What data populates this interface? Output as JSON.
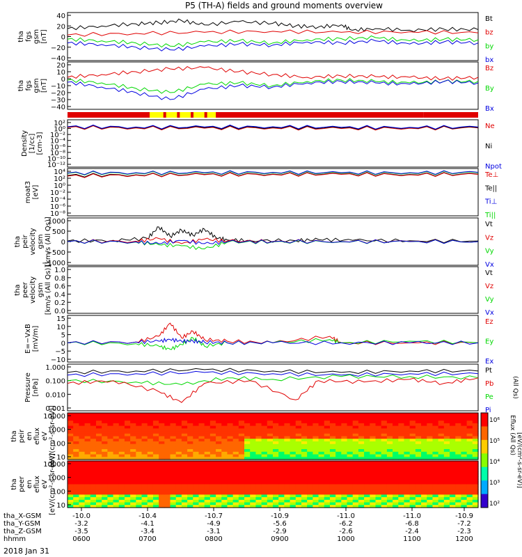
{
  "title": "P5 (TH-A) fields and ground moments overview",
  "date_label": "2018 Jan 31",
  "colors": {
    "black": "#000000",
    "red": "#e00000",
    "green": "#00d800",
    "blue": "#0000e0",
    "yellow": "#ffff00",
    "gray": "#888888"
  },
  "chart_data": [
    {
      "type": "line",
      "ylabel": [
        "tha",
        "fgs",
        "gsm",
        "[nT]"
      ],
      "yticks": [
        "40",
        "20",
        "0",
        "−20",
        "−40"
      ],
      "ylim": [
        -40,
        40
      ],
      "legend": [
        {
          "text": "Bt",
          "color": "#000000"
        },
        {
          "text": "bz",
          "color": "#e00000"
        },
        {
          "text": "by",
          "color": "#00d800"
        },
        {
          "text": "bx",
          "color": "#0000e0"
        }
      ],
      "series": [
        {
          "name": "Bt",
          "color": "#000000",
          "x": [
            0,
            30,
            60,
            80,
            100,
            120,
            150,
            180,
            200,
            220,
            240,
            250,
            270,
            300,
            330,
            360
          ],
          "y": [
            15,
            20,
            24,
            26,
            30,
            22,
            28,
            25,
            20,
            18,
            22,
            12,
            15,
            12,
            14,
            13
          ]
        },
        {
          "name": "bz",
          "color": "#e00000",
          "x": [
            0,
            60,
            120,
            180,
            240,
            300,
            360
          ],
          "y": [
            3,
            6,
            8,
            10,
            8,
            9,
            7
          ]
        },
        {
          "name": "by",
          "color": "#00d800",
          "x": [
            0,
            30,
            60,
            90,
            120,
            150,
            180,
            210,
            240,
            270,
            300,
            330,
            360
          ],
          "y": [
            -5,
            -8,
            -12,
            -18,
            -10,
            -8,
            -12,
            -6,
            -4,
            -2,
            -8,
            -5,
            -6
          ]
        },
        {
          "name": "bx",
          "color": "#0000e0",
          "x": [
            0,
            30,
            60,
            90,
            120,
            150,
            180,
            210,
            240,
            270,
            300,
            330,
            360
          ],
          "y": [
            -12,
            -15,
            -20,
            -25,
            -18,
            -14,
            -16,
            -10,
            -12,
            -8,
            -14,
            -10,
            -12
          ]
        }
      ]
    },
    {
      "type": "line",
      "ylabel": [
        "tha",
        "fgs",
        "gsm",
        "[nT]"
      ],
      "yticks": [
        "20",
        "10",
        "0",
        "−10",
        "−20",
        "−30",
        "−40"
      ],
      "ylim": [
        -40,
        20
      ],
      "legend": [
        {
          "text": "Bz",
          "color": "#e00000"
        },
        {
          "text": "By",
          "color": "#00d800"
        },
        {
          "text": "Bx",
          "color": "#0000e0"
        }
      ],
      "series": [
        {
          "name": "Bz",
          "color": "#e00000",
          "x": [
            0,
            30,
            60,
            90,
            120,
            150,
            180,
            210,
            240,
            270,
            300,
            330,
            360
          ],
          "y": [
            2,
            6,
            10,
            14,
            16,
            10,
            6,
            2,
            4,
            3,
            2,
            0,
            2
          ]
        },
        {
          "name": "By",
          "color": "#00d800",
          "x": [
            0,
            30,
            60,
            90,
            120,
            150,
            180,
            210,
            240,
            270,
            300,
            330,
            360
          ],
          "y": [
            -2,
            -6,
            -14,
            -20,
            -8,
            -6,
            -10,
            -4,
            -2,
            -4,
            -6,
            -4,
            -4
          ]
        },
        {
          "name": "Bx",
          "color": "#0000e0",
          "x": [
            0,
            30,
            60,
            90,
            120,
            150,
            180,
            210,
            240,
            270,
            300,
            330,
            360
          ],
          "y": [
            -5,
            -12,
            -20,
            -30,
            -15,
            -10,
            -12,
            -6,
            -4,
            -6,
            -8,
            -4,
            -6
          ]
        }
      ]
    },
    {
      "type": "heatmap",
      "description_free": true,
      "legend": [],
      "bar_segments": [
        {
          "start": 0,
          "end": 72,
          "color": "#e00000"
        },
        {
          "start": 72,
          "end": 130,
          "color": "#ffff00"
        },
        {
          "start": 130,
          "end": 312,
          "color": "#e00000"
        },
        {
          "start": 312,
          "end": 360,
          "color": "#e00000"
        }
      ]
    },
    {
      "type": "line",
      "ylabel": [
        "Density",
        "[1/cc]",
        "[cm-3]"
      ],
      "yticks": [
        "10²",
        "10⁰",
        "10⁻²",
        "10⁻⁴",
        "10⁻⁶",
        "10⁻⁸",
        "10⁻¹⁰",
        "10⁻¹²"
      ],
      "ylim": [
        -12,
        2
      ],
      "scale": "log",
      "legend": [
        {
          "text": "Ne",
          "color": "#e00000"
        },
        {
          "text": "Ni",
          "color": "#000000"
        },
        {
          "text": "Npot",
          "color": "#0000e0"
        }
      ],
      "series": [
        {
          "name": "Ne",
          "color": "#e00000",
          "x": [
            0,
            60,
            120,
            180,
            240,
            300,
            360
          ],
          "y": [
            0.3,
            0.2,
            0.1,
            0.2,
            0.0,
            0.1,
            0.2
          ]
        },
        {
          "name": "Ni",
          "color": "#000000",
          "x": [
            0,
            60,
            120,
            180,
            240,
            300,
            360
          ],
          "y": [
            0.5,
            0.4,
            0.3,
            0.4,
            0.2,
            0.3,
            0.3
          ]
        },
        {
          "name": "Npot",
          "color": "#0000e0",
          "x": [
            0,
            60,
            120,
            180,
            240,
            300,
            360
          ],
          "y": [
            0.6,
            0.5,
            0.5,
            0.6,
            0.4,
            0.4,
            0.5
          ]
        }
      ]
    },
    {
      "type": "line",
      "ylabel": [
        "moat3",
        "[eV]"
      ],
      "yticks": [
        "10⁴",
        "10²",
        "10⁰",
        "10⁻²",
        "10⁻⁴",
        "10⁻⁶",
        "10⁻⁸"
      ],
      "ylim": [
        -8,
        4
      ],
      "scale": "log",
      "legend": [
        {
          "text": "Te⊥",
          "color": "#e00000"
        },
        {
          "text": "Te||",
          "color": "#000000"
        },
        {
          "text": "Ti⊥",
          "color": "#0000e0"
        },
        {
          "text": "Ti||",
          "color": "#00d800"
        }
      ],
      "series": [
        {
          "name": "Ti||",
          "color": "#00d800",
          "x": [
            0,
            60,
            120,
            180,
            240,
            300,
            360
          ],
          "y": [
            3.4,
            3.5,
            3.5,
            3.6,
            3.5,
            3.5,
            3.6
          ]
        },
        {
          "name": "Ti⊥",
          "color": "#0000e0",
          "x": [
            0,
            60,
            120,
            180,
            240,
            300,
            360
          ],
          "y": [
            3.5,
            3.6,
            3.6,
            3.7,
            3.6,
            3.6,
            3.7
          ]
        },
        {
          "name": "Te||",
          "color": "#000000",
          "x": [
            0,
            60,
            120,
            180,
            240,
            300,
            360
          ],
          "y": [
            2.8,
            3.0,
            3.1,
            3.2,
            3.2,
            3.1,
            3.2
          ]
        },
        {
          "name": "Te⊥",
          "color": "#e00000",
          "x": [
            0,
            60,
            120,
            180,
            240,
            300,
            360
          ],
          "y": [
            2.6,
            2.9,
            3.0,
            3.1,
            3.1,
            3.0,
            3.1
          ]
        }
      ]
    },
    {
      "type": "line",
      "ylabel": [
        "tha",
        "peir",
        "velocity",
        "gsm",
        "[km/s (All Qs)]"
      ],
      "yticks": [
        "1000",
        "500",
        "0",
        "−500",
        "−1000"
      ],
      "ylim": [
        -1000,
        1000
      ],
      "legend": [
        {
          "text": "Vt",
          "color": "#000000"
        },
        {
          "text": "Vz",
          "color": "#e00000"
        },
        {
          "text": "Vy",
          "color": "#00d800"
        },
        {
          "text": "Vx",
          "color": "#0000e0"
        }
      ],
      "series": [
        {
          "name": "Vt",
          "color": "#000000",
          "x": [
            0,
            40,
            70,
            80,
            90,
            100,
            110,
            120,
            130,
            140,
            160,
            200,
            220,
            250,
            300,
            360
          ],
          "y": [
            30,
            60,
            150,
            700,
            250,
            550,
            300,
            600,
            200,
            80,
            50,
            40,
            100,
            60,
            40,
            30
          ]
        },
        {
          "name": "Vz",
          "color": "#e00000",
          "x": [
            0,
            60,
            80,
            100,
            120,
            140,
            180,
            240,
            300,
            360
          ],
          "y": [
            0,
            20,
            150,
            -100,
            120,
            20,
            10,
            0,
            10,
            0
          ]
        },
        {
          "name": "Vy",
          "color": "#00d800",
          "x": [
            0,
            60,
            80,
            100,
            120,
            140,
            180,
            240,
            300,
            360
          ],
          "y": [
            0,
            -20,
            -150,
            -200,
            -350,
            -30,
            -10,
            -10,
            0,
            0
          ]
        },
        {
          "name": "Vx",
          "color": "#0000e0",
          "x": [
            0,
            60,
            80,
            100,
            120,
            140,
            180,
            240,
            300,
            360
          ],
          "y": [
            0,
            -10,
            -100,
            50,
            -100,
            -10,
            0,
            0,
            0,
            0
          ]
        }
      ]
    },
    {
      "type": "line",
      "ylabel": [
        "tha",
        "peer",
        "velocity",
        "gsm",
        "[km/s (All Qs)]"
      ],
      "yticks": [
        "1.0",
        "0.8",
        "0.6",
        "0.4",
        "0.2",
        "0.0"
      ],
      "ylim": [
        0,
        1
      ],
      "legend": [
        {
          "text": "Vt",
          "color": "#000000"
        },
        {
          "text": "Vz",
          "color": "#e00000"
        },
        {
          "text": "Vy",
          "color": "#00d800"
        },
        {
          "text": "Vx",
          "color": "#0000e0"
        }
      ],
      "series": []
    },
    {
      "type": "line",
      "ylabel": [
        "E=−VxB",
        "[mV/m]"
      ],
      "yticks": [
        "15",
        "10",
        "5",
        "0",
        "−5",
        "−10"
      ],
      "ylim": [
        -10,
        15
      ],
      "legend": [
        {
          "text": "Ez",
          "color": "#e00000"
        },
        {
          "text": "Ey",
          "color": "#00d800"
        },
        {
          "text": "Ex",
          "color": "#0000e0"
        }
      ],
      "series": [
        {
          "name": "Ez",
          "color": "#e00000",
          "x": [
            0,
            60,
            80,
            90,
            100,
            110,
            120,
            140,
            180,
            230,
            240,
            300,
            360
          ],
          "y": [
            0,
            0.5,
            4,
            12,
            3,
            7,
            2,
            1,
            0,
            4,
            0,
            0,
            0
          ]
        },
        {
          "name": "Ey",
          "color": "#00d800",
          "x": [
            0,
            60,
            80,
            90,
            100,
            110,
            120,
            140,
            180,
            230,
            240,
            300,
            360
          ],
          "y": [
            0,
            -0.5,
            -2,
            -4,
            -1,
            3,
            -2,
            0,
            0,
            2,
            0,
            1,
            0
          ]
        },
        {
          "name": "Ex",
          "color": "#0000e0",
          "x": [
            0,
            60,
            80,
            90,
            100,
            110,
            120,
            140,
            180,
            240,
            300,
            360
          ],
          "y": [
            0,
            0.5,
            1,
            2,
            1,
            1,
            0.5,
            0,
            0,
            0,
            0,
            0
          ]
        }
      ]
    },
    {
      "type": "line",
      "ylabel": [
        "Pressure",
        "[nPa]"
      ],
      "yticks": [
        "1.000",
        "0.100",
        "0.010",
        "0.001"
      ],
      "ylim": [
        -3,
        0
      ],
      "scale": "log",
      "legend": [
        {
          "text": "Pt",
          "color": "#000000"
        },
        {
          "text": "Pb",
          "color": "#e00000"
        },
        {
          "text": "Pe",
          "color": "#00d800"
        },
        {
          "text": "Pi",
          "color": "#0000e0"
        }
      ],
      "extra_label": "(All Qs)",
      "series": [
        {
          "name": "Pt",
          "color": "#000000",
          "x": [
            0,
            60,
            120,
            180,
            240,
            300,
            360
          ],
          "y": [
            -0.4,
            -0.3,
            -0.2,
            -0.3,
            -0.4,
            -0.3,
            -0.3
          ]
        },
        {
          "name": "Pi",
          "color": "#0000e0",
          "x": [
            0,
            60,
            120,
            180,
            240,
            300,
            360
          ],
          "y": [
            -0.6,
            -0.5,
            -0.4,
            -0.5,
            -0.6,
            -0.5,
            -0.5
          ]
        },
        {
          "name": "Pe",
          "color": "#00d800",
          "x": [
            0,
            60,
            100,
            140,
            180,
            240,
            300,
            360
          ],
          "y": [
            -1.0,
            -1.1,
            -1.3,
            -0.8,
            -0.9,
            -0.7,
            -0.7,
            -0.8
          ]
        },
        {
          "name": "Pb",
          "color": "#e00000",
          "x": [
            0,
            40,
            80,
            100,
            120,
            160,
            200,
            220,
            260,
            300,
            330,
            360
          ],
          "y": [
            -1.2,
            -1.0,
            -1.8,
            -2.6,
            -1.2,
            -1.0,
            -2.4,
            -1.0,
            -1.1,
            -0.9,
            -1.2,
            -0.8
          ]
        }
      ]
    },
    {
      "type": "heatmap",
      "ylabel": [
        "tha",
        "peir",
        "en",
        "eflux",
        "eV",
        "[eV/(cm²-s-sr-eV)]"
      ],
      "yticks": [
        "10000",
        "1000",
        "100",
        "10"
      ],
      "ylim": [
        5,
        25000
      ],
      "scale": "log",
      "legend": []
    },
    {
      "type": "heatmap",
      "ylabel": [
        "tha",
        "peer",
        "en",
        "eflux",
        "eV",
        "[eV/(cm²-s-sr-eV)]"
      ],
      "yticks": [
        "10000",
        "1000",
        "100",
        "10"
      ],
      "ylim": [
        5,
        25000
      ],
      "scale": "log",
      "legend": []
    }
  ],
  "colorbar": {
    "ticks": [
      "10⁶",
      "10⁵",
      "10⁴",
      "10³",
      "10²"
    ],
    "label": "[eV/(cm²-s-sr-eV)]",
    "extra_label": "Eflux (All Qs)"
  },
  "x_axis": {
    "rows": [
      {
        "label": "tha_X-GSM",
        "values": [
          "-10.0",
          "-10.4",
          "-10.7",
          "-10.9",
          "-11.0",
          "-11.0",
          "-10.9"
        ]
      },
      {
        "label": "tha_Y-GSM",
        "values": [
          "-3.2",
          "-4.1",
          "-4.9",
          "-5.6",
          "-6.2",
          "-6.8",
          "-7.2"
        ]
      },
      {
        "label": "tha_Z-GSM",
        "values": [
          "-3.5",
          "-3.4",
          "-3.1",
          "-2.9",
          "-2.6",
          "-2.4",
          "-2.3"
        ]
      },
      {
        "label": "hhmm",
        "values": [
          "0600",
          "0700",
          "0800",
          "0900",
          "1000",
          "1100",
          "1200"
        ]
      }
    ]
  }
}
